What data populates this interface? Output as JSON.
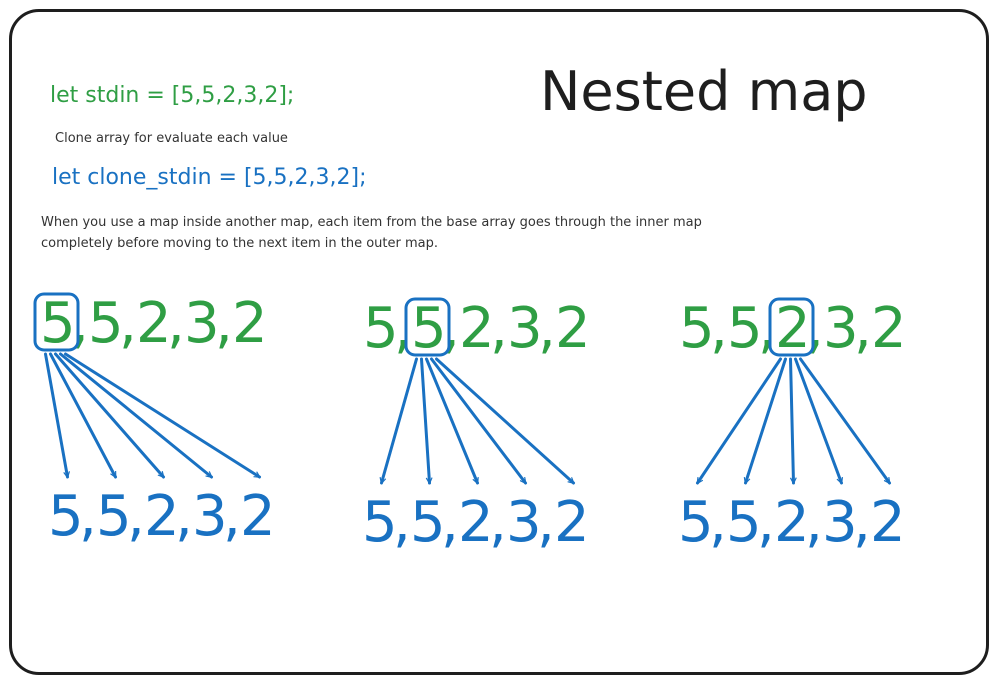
{
  "title": "Nested map",
  "code_line_1": "let stdin = [5,5,2,3,2];",
  "note": "Clone array for evaluate each value",
  "code_line_2": "let clone_stdin = [5,5,2,3,2];",
  "explanation": {
    "line1": "When you use a map inside another map, each item from the base array goes through the inner map",
    "line2": " completely before moving to the next item in the outer map."
  },
  "colors": {
    "outer": "#2f9e44",
    "inner": "#1971c2",
    "text": "#1e1e1e"
  },
  "outer_values": [
    "5",
    "5",
    "2",
    "3",
    "2"
  ],
  "inner_values": [
    "5",
    "5",
    "2",
    "3",
    "2"
  ],
  "separator": ",",
  "panels": [
    {
      "highlight_index": 0
    },
    {
      "highlight_index": 1
    },
    {
      "highlight_index": 2
    }
  ]
}
